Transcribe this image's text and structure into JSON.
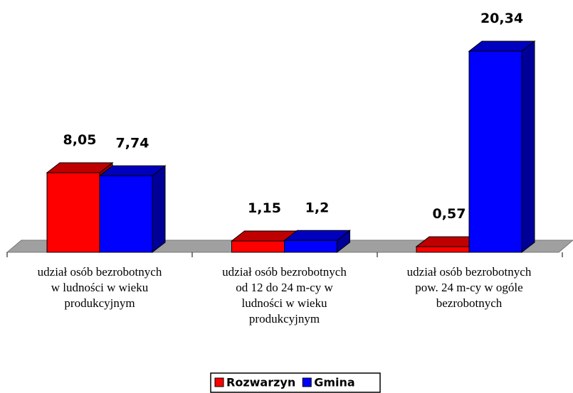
{
  "chart_data": {
    "type": "bar3d",
    "categories": [
      "udział osób bezrobotnych w ludności w wieku produkcyjnym",
      "udział osób bezrobotnych od 12 do 24 m-cy w ludności w wieku produkcyjnym",
      "udział osób bezrobotnych pow. 24 m-cy w ogóle bezrobotnych"
    ],
    "series": [
      {
        "name": "Rozwarzyn",
        "color": "#ff0000",
        "values": [
          8.05,
          1.15,
          0.57
        ],
        "value_labels": [
          "8,05",
          "1,15",
          "0,57"
        ]
      },
      {
        "name": "Gmina",
        "color": "#0000ff",
        "values": [
          7.74,
          1.2,
          20.34
        ],
        "value_labels": [
          "7,74",
          "1,2",
          "20,34"
        ]
      }
    ],
    "legend": "bottom"
  }
}
